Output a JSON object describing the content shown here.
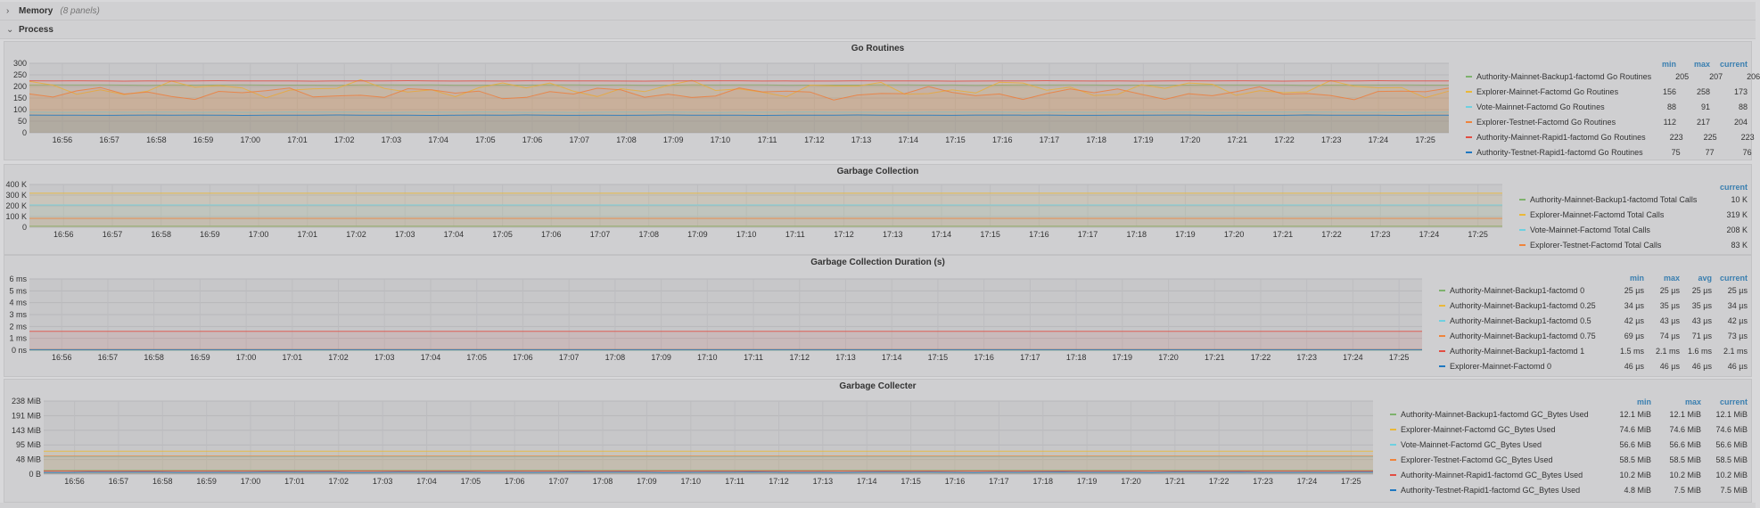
{
  "rows": [
    {
      "title": "Memory",
      "subtitle": "(8 panels)",
      "chevron": "›"
    },
    {
      "title": "Process",
      "subtitle": "",
      "chevron": "⌄"
    }
  ],
  "colors": [
    "#7eb26d",
    "#eab839",
    "#6ed0e0",
    "#ef843c",
    "#e24d42",
    "#1f78c1",
    "#ba43a9",
    "#705da0"
  ],
  "time_ticks": [
    "16:56",
    "16:57",
    "16:58",
    "16:59",
    "17:00",
    "17:01",
    "17:02",
    "17:03",
    "17:04",
    "17:05",
    "17:06",
    "17:07",
    "17:08",
    "17:09",
    "17:10",
    "17:11",
    "17:12",
    "17:13",
    "17:14",
    "17:15",
    "17:16",
    "17:17",
    "17:18",
    "17:19",
    "17:20",
    "17:21",
    "17:22",
    "17:23",
    "17:24",
    "17:25"
  ],
  "chart_data": [
    {
      "type": "area",
      "title": "Go Routines",
      "ylim": [
        0,
        300
      ],
      "y_ticks": [
        "300",
        "250",
        "200",
        "150",
        "100",
        "50",
        "0"
      ],
      "legend_columns": [
        "min",
        "max",
        "current"
      ],
      "series": [
        {
          "name": "Authority-Mainnet-Backup1-factomd Go Routines",
          "min": "205",
          "max": "207",
          "current": "206",
          "level": 206,
          "amp": 1
        },
        {
          "name": "Explorer-Mainnet-Factomd Go Routines",
          "min": "156",
          "max": "258",
          "current": "173",
          "level": 190,
          "amp": 40
        },
        {
          "name": "Vote-Mainnet-Factomd Go Routines",
          "min": "88",
          "max": "91",
          "current": "88",
          "level": 89,
          "amp": 1
        },
        {
          "name": "Explorer-Testnet-Factomd Go Routines",
          "min": "112",
          "max": "217",
          "current": "204",
          "level": 170,
          "amp": 30
        },
        {
          "name": "Authority-Mainnet-Rapid1-factomd Go Routines",
          "min": "223",
          "max": "225",
          "current": "223",
          "level": 224,
          "amp": 1
        },
        {
          "name": "Authority-Testnet-Rapid1-factomd Go Routines",
          "min": "75",
          "max": "77",
          "current": "76",
          "level": 76,
          "amp": 1
        }
      ]
    },
    {
      "type": "area",
      "title": "Garbage Collection",
      "ylim": [
        0,
        400000
      ],
      "y_ticks": [
        "400 K",
        "300 K",
        "200 K",
        "100 K",
        "0"
      ],
      "legend_columns": [
        "current"
      ],
      "series": [
        {
          "name": "Authority-Mainnet-Backup1-factomd Total Calls",
          "current": "10 K",
          "level": 10000,
          "amp": 0
        },
        {
          "name": "Explorer-Mainnet-Factomd Total Calls",
          "current": "319 K",
          "level": 319000,
          "amp": 0
        },
        {
          "name": "Vote-Mainnet-Factomd Total Calls",
          "current": "208 K",
          "level": 208000,
          "amp": 0
        },
        {
          "name": "Explorer-Testnet-Factomd Total Calls",
          "current": "83 K",
          "level": 83000,
          "amp": 0
        }
      ]
    },
    {
      "type": "area",
      "title": "Garbage Collection Duration (s)",
      "ylim": [
        0,
        6
      ],
      "y_ticks": [
        "6 ms",
        "5 ms",
        "4 ms",
        "3 ms",
        "2 ms",
        "1 ms",
        "0 ns"
      ],
      "legend_columns": [
        "min",
        "max",
        "avg",
        "current"
      ],
      "series": [
        {
          "name": "Authority-Mainnet-Backup1-factomd 0",
          "min": "25 µs",
          "max": "25 µs",
          "avg": "25 µs",
          "current": "25 µs",
          "level": 0.025,
          "amp": 0
        },
        {
          "name": "Authority-Mainnet-Backup1-factomd 0.25",
          "min": "34 µs",
          "max": "35 µs",
          "avg": "35 µs",
          "current": "34 µs",
          "level": 0.035,
          "amp": 0
        },
        {
          "name": "Authority-Mainnet-Backup1-factomd 0.5",
          "min": "42 µs",
          "max": "43 µs",
          "avg": "43 µs",
          "current": "42 µs",
          "level": 0.043,
          "amp": 0
        },
        {
          "name": "Authority-Mainnet-Backup1-factomd 0.75",
          "min": "69 µs",
          "max": "74 µs",
          "avg": "71 µs",
          "current": "73 µs",
          "level": 0.071,
          "amp": 0
        },
        {
          "name": "Authority-Mainnet-Backup1-factomd 1",
          "min": "1.5 ms",
          "max": "2.1 ms",
          "avg": "1.6 ms",
          "current": "2.1 ms",
          "level": 1.6,
          "amp": 0
        },
        {
          "name": "Explorer-Mainnet-Factomd 0",
          "min": "46 µs",
          "max": "46 µs",
          "avg": "46 µs",
          "current": "46 µs",
          "level": 0.046,
          "amp": 0
        }
      ]
    },
    {
      "type": "area",
      "title": "Garbage Collecter",
      "ylim": [
        0,
        238
      ],
      "y_ticks": [
        "238 MiB",
        "191 MiB",
        "143 MiB",
        "95 MiB",
        "48 MiB",
        "0 B"
      ],
      "legend_columns": [
        "min",
        "max",
        "current"
      ],
      "series": [
        {
          "name": "Authority-Mainnet-Backup1-factomd GC_Bytes Used",
          "min": "12.1 MiB",
          "max": "12.1 MiB",
          "current": "12.1 MiB",
          "level": 12.1,
          "amp": 0
        },
        {
          "name": "Explorer-Mainnet-Factomd GC_Bytes Used",
          "min": "74.6 MiB",
          "max": "74.6 MiB",
          "current": "74.6 MiB",
          "level": 74.6,
          "amp": 0
        },
        {
          "name": "Vote-Mainnet-Factomd GC_Bytes Used",
          "min": "56.6 MiB",
          "max": "56.6 MiB",
          "current": "56.6 MiB",
          "level": 56.6,
          "amp": 0
        },
        {
          "name": "Explorer-Testnet-Factomd GC_Bytes Used",
          "min": "58.5 MiB",
          "max": "58.5 MiB",
          "current": "58.5 MiB",
          "level": 58.5,
          "amp": 0
        },
        {
          "name": "Authority-Mainnet-Rapid1-factomd GC_Bytes Used",
          "min": "10.2 MiB",
          "max": "10.2 MiB",
          "current": "10.2 MiB",
          "level": 10.2,
          "amp": 0
        },
        {
          "name": "Authority-Testnet-Rapid1-factomd GC_Bytes Used",
          "min": "4.8 MiB",
          "max": "7.5 MiB",
          "current": "7.5 MiB",
          "level": 6,
          "amp": 1
        }
      ]
    }
  ]
}
